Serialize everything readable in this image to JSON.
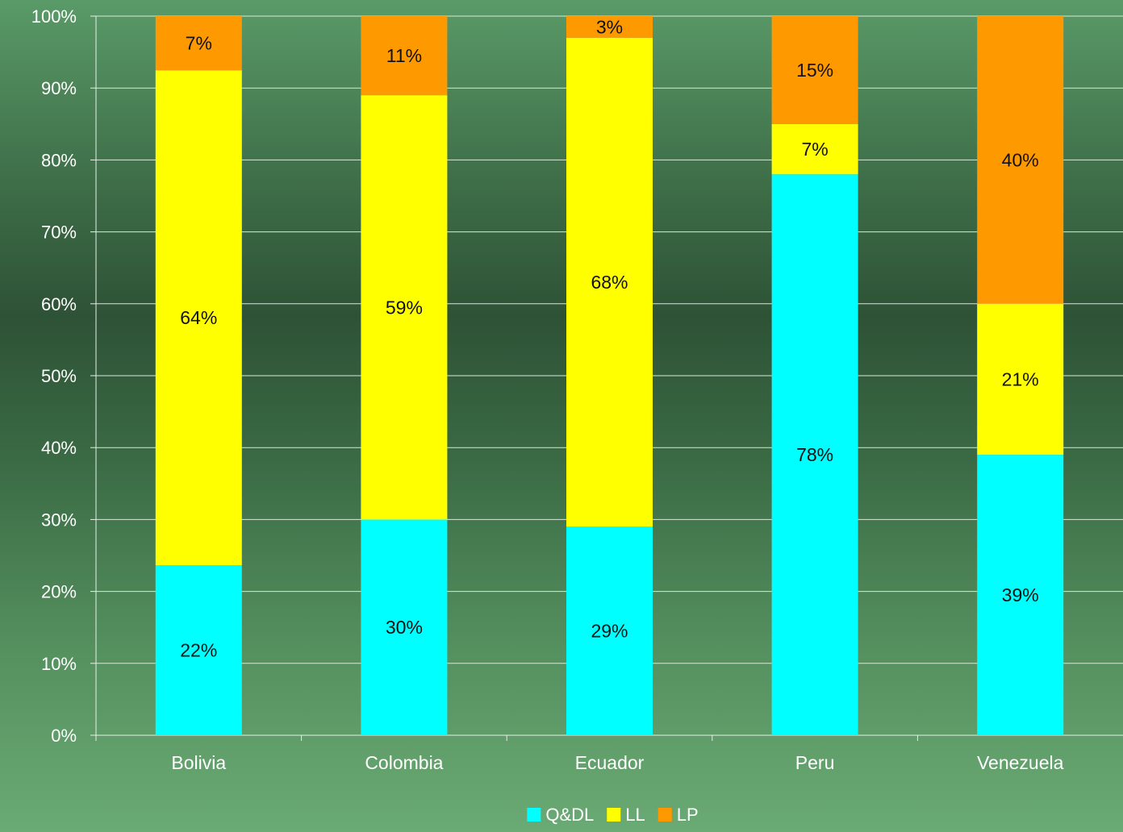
{
  "chart_data": {
    "type": "bar",
    "stacked": true,
    "percent_stacked": true,
    "categories": [
      "Bolivia",
      "Colombia",
      "Ecuador",
      "Peru",
      "Venezuela"
    ],
    "series": [
      {
        "name": "Q&DL",
        "color": "#00ffff",
        "values": [
          22,
          30,
          29,
          78,
          39
        ],
        "labels": [
          "22%",
          "30%",
          "29%",
          "78%",
          "39%"
        ]
      },
      {
        "name": "LL",
        "color": "#ffff00",
        "values": [
          64,
          59,
          68,
          7,
          21
        ],
        "labels": [
          "64%",
          "59%",
          "68%",
          "7%",
          "21%"
        ]
      },
      {
        "name": "LP",
        "color": "#ff9900",
        "values": [
          7,
          11,
          3,
          15,
          40
        ],
        "labels": [
          "7%",
          "11%",
          "3%",
          "15%",
          "40%"
        ]
      }
    ],
    "y_ticks": [
      "0%",
      "10%",
      "20%",
      "30%",
      "40%",
      "50%",
      "60%",
      "70%",
      "80%",
      "90%",
      "100%"
    ],
    "ylim": [
      0,
      100
    ],
    "grid": true,
    "legend_position": "bottom",
    "title": "",
    "xlabel": "",
    "ylabel": ""
  }
}
